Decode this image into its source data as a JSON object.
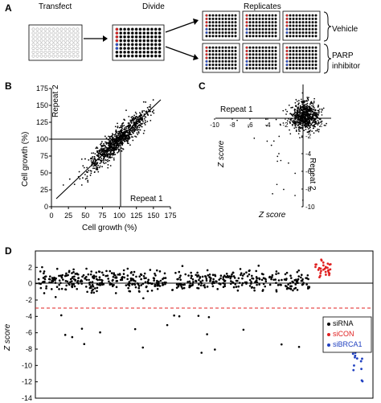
{
  "panel_a": {
    "letter": "A",
    "steps": [
      "Transfect",
      "Divide",
      "Replicates"
    ],
    "groups": [
      "Vehicle",
      "PARP",
      "inhibitor"
    ]
  },
  "panel_b": {
    "letter": "B",
    "xlabel": "Cell growth (%)",
    "ylabel": "Cell growth (%)",
    "ticks": [
      "0",
      "25",
      "50",
      "75",
      "100",
      "125",
      "150",
      "175"
    ],
    "repeat_1": "Repeat 1",
    "repeat_2": "Repeat 2"
  },
  "panel_c": {
    "letter": "C",
    "xlabel": "Z score",
    "ylabel": "Z score",
    "xticks": [
      "-10",
      "-8",
      "-6",
      "-4",
      "-2",
      "2"
    ],
    "yticks": [
      "-2",
      "-4",
      "-6",
      "-8",
      "-10"
    ],
    "origin": "0",
    "repeat_1": "Repeat 1",
    "repeat_2": "Repeat 2"
  },
  "panel_d": {
    "letter": "D",
    "ylabel": "Z score",
    "yticks": [
      "2",
      "0",
      "-2",
      "-4",
      "-6",
      "-8",
      "-10",
      "-12",
      "-14"
    ],
    "legend": [
      {
        "label": "siRNA",
        "color": "#000000"
      },
      {
        "label": "siCON",
        "color": "#e02020"
      },
      {
        "label": "siBRCA1",
        "color": "#2040c0"
      }
    ]
  },
  "chart_data": [
    {
      "type": "scatter",
      "panel": "B",
      "xlabel": "Cell growth (%)",
      "ylabel": "Cell growth (%)",
      "xlim": [
        0,
        175
      ],
      "ylim": [
        0,
        175
      ],
      "cutoffs": {
        "x": 100,
        "y": 100
      },
      "cloud": {
        "center": [
          98,
          97
        ],
        "spread": 14,
        "range": [
          10,
          160
        ]
      }
    },
    {
      "type": "scatter",
      "panel": "C",
      "xlabel": "Z score",
      "ylabel": "Z score",
      "xlim": [
        -10,
        3
      ],
      "ylim": [
        -10,
        3
      ],
      "cloud": {
        "center": [
          0.3,
          0.2
        ],
        "spread": 0.8
      }
    },
    {
      "type": "scatter",
      "panel": "D",
      "ylabel": "Z score",
      "ylim": [
        -14,
        4
      ],
      "threshold": -3,
      "series": [
        {
          "name": "siRNA",
          "center": 0.3,
          "spread": 0.7
        },
        {
          "name": "siCON",
          "center": 1.8,
          "spread": 0.5
        },
        {
          "name": "siBRCA1",
          "center": -8.5,
          "spread": 1.5
        }
      ]
    }
  ]
}
